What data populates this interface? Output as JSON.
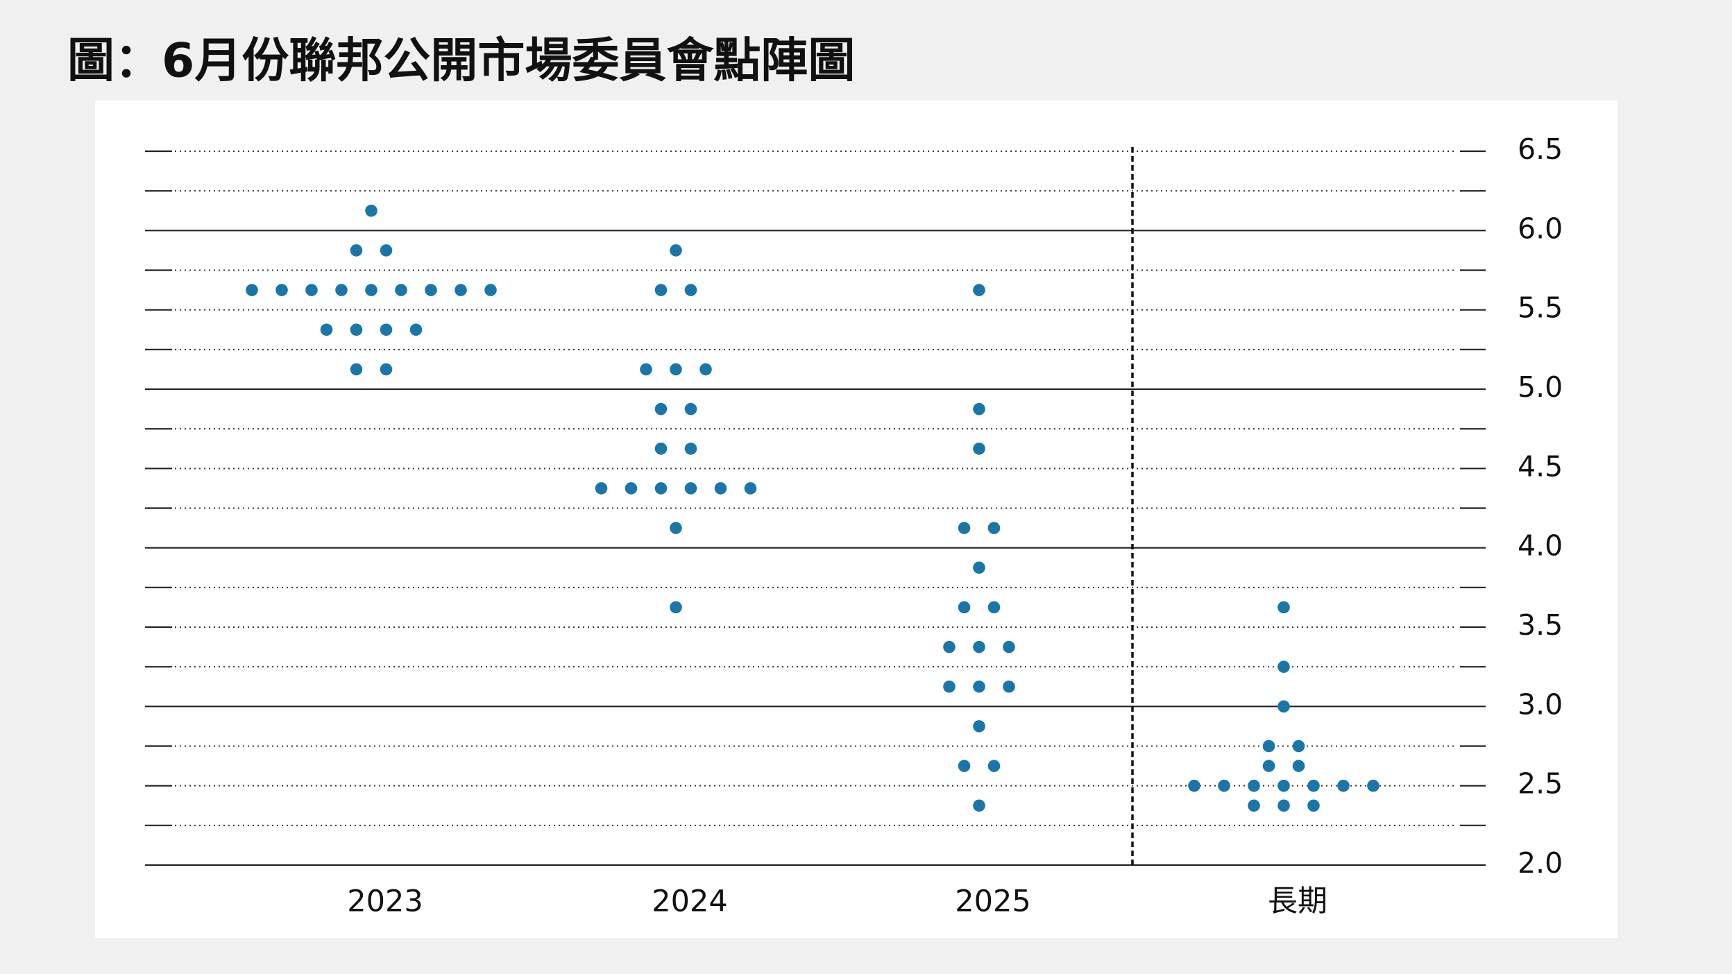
{
  "chart_data": {
    "type": "dot",
    "title": "圖：6月份聯邦公開市場委員會點陣圖",
    "categories": [
      "2023",
      "2024",
      "2025",
      "長期"
    ],
    "values": [
      [
        6.125,
        5.875,
        5.875,
        5.625,
        5.625,
        5.625,
        5.625,
        5.625,
        5.625,
        5.625,
        5.625,
        5.625,
        5.375,
        5.375,
        5.375,
        5.375,
        5.125,
        5.125
      ],
      [
        5.875,
        5.625,
        5.625,
        5.125,
        5.125,
        5.125,
        4.875,
        4.875,
        4.625,
        4.625,
        4.375,
        4.375,
        4.375,
        4.375,
        4.375,
        4.375,
        4.125,
        3.625
      ],
      [
        5.625,
        4.875,
        4.625,
        4.125,
        4.125,
        3.875,
        3.625,
        3.625,
        3.375,
        3.375,
        3.375,
        3.125,
        3.125,
        3.125,
        2.875,
        2.625,
        2.625,
        2.375
      ],
      [
        3.625,
        3.25,
        3.0,
        2.75,
        2.75,
        2.625,
        2.625,
        2.5,
        2.5,
        2.5,
        2.5,
        2.5,
        2.5,
        2.5,
        2.375,
        2.375,
        2.375
      ]
    ],
    "color": "#1a76a8",
    "ylim": [
      2.0,
      6.5
    ],
    "yticks": [
      {
        "value": 2,
        "label": "2.0"
      },
      {
        "value": 2.5,
        "label": "2.5"
      },
      {
        "value": 3,
        "label": "3.0"
      },
      {
        "value": 3.5,
        "label": "3.5"
      },
      {
        "value": 4,
        "label": "4.0"
      },
      {
        "value": 4.5,
        "label": "4.5"
      },
      {
        "value": 5,
        "label": "5.0"
      },
      {
        "value": 5.5,
        "label": "5.5"
      },
      {
        "value": 6,
        "label": "6.0"
      },
      {
        "value": 6.5,
        "label": "6.5"
      }
    ],
    "grid": true
  }
}
